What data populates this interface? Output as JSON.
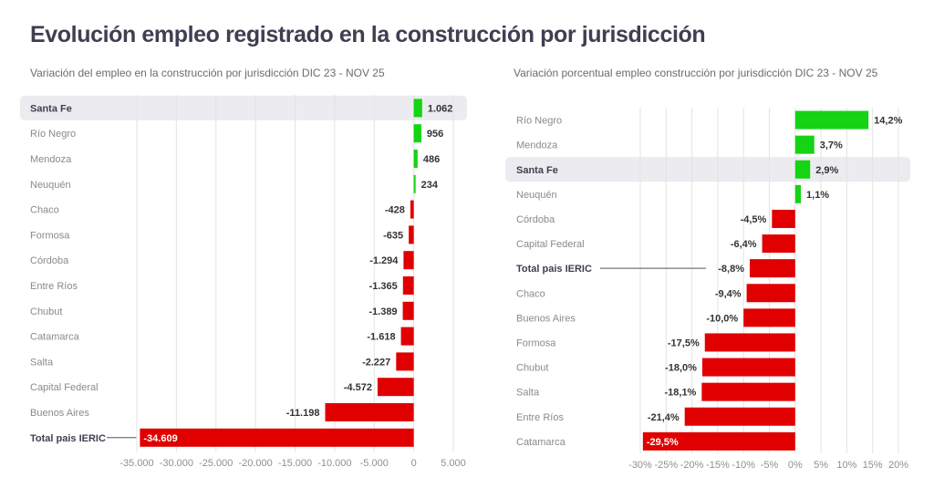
{
  "page": {
    "title": "Evolución empleo registrado en la construcción por jurisdicción"
  },
  "colors": {
    "positive": "#14d414",
    "negative": "#e00000",
    "highlight_band": "#ececf0",
    "title": "#3f3f52"
  },
  "chart_data": [
    {
      "type": "bar",
      "orientation": "horizontal",
      "title": "Variación del empleo en la construcción por jurisdicción DIC 23 - NOV 25",
      "xlabel": "",
      "ylabel": "",
      "xlim": [
        -35000,
        5000
      ],
      "grid": true,
      "highlight": "Santa Fe",
      "total_label": "Total pais IERIC",
      "categories": [
        "Santa Fe",
        "Río Negro",
        "Mendoza",
        "Neuquén",
        "Chaco",
        "Formosa",
        "Córdoba",
        "Entre Ríos",
        "Chubut",
        "Catamarca",
        "Salta",
        "Capital Federal",
        "Buenos Aires",
        "Total pais IERIC"
      ],
      "values": [
        1062,
        956,
        486,
        234,
        -428,
        -635,
        -1294,
        -1365,
        -1389,
        -1618,
        -2227,
        -4572,
        -11198,
        -34609
      ],
      "value_labels": [
        "1.062",
        "956",
        "486",
        "234",
        "-428",
        "-635",
        "-1.294",
        "-1.365",
        "-1.389",
        "-1.618",
        "-2.227",
        "-4.572",
        "-11.198",
        "-34.609"
      ],
      "ticks": [
        -35000,
        -30000,
        -25000,
        -20000,
        -15000,
        -10000,
        -5000,
        0,
        5000
      ],
      "tick_labels": [
        "-35.000",
        "-30.000",
        "-25.000",
        "-20.000",
        "-15.000",
        "-10.000",
        "-5.000",
        "0",
        "5.000"
      ]
    },
    {
      "type": "bar",
      "orientation": "horizontal",
      "title": "Variación  porcentual empleo construcción por jurisdicción DIC 23 - NOV 25",
      "xlabel": "",
      "ylabel": "",
      "xlim": [
        -30,
        20
      ],
      "unit": "%",
      "grid": true,
      "highlight": "Santa Fe",
      "total_label": "Total pais IERIC",
      "categories": [
        "Río Negro",
        "Mendoza",
        "Santa Fe",
        "Neuquén",
        "Córdoba",
        "Capital Federal",
        "Total pais IERIC",
        "Chaco",
        "Buenos Aires",
        "Formosa",
        "Chubut",
        "Salta",
        "Entre Ríos",
        "Catamarca"
      ],
      "values": [
        14.2,
        3.7,
        2.9,
        1.1,
        -4.5,
        -6.4,
        -8.8,
        -9.4,
        -10.0,
        -17.5,
        -18.0,
        -18.1,
        -21.4,
        -29.5
      ],
      "value_labels": [
        "14,2%",
        "3,7%",
        "2,9%",
        "1,1%",
        "-4,5%",
        "-6,4%",
        "-8,8%",
        "-9,4%",
        "-10,0%",
        "-17,5%",
        "-18,0%",
        "-18,1%",
        "-21,4%",
        "-29,5%"
      ],
      "ticks": [
        -30,
        -25,
        -20,
        -15,
        -10,
        -5,
        0,
        5,
        10,
        15,
        20
      ],
      "tick_labels": [
        "-30%",
        "-25%",
        "-20%",
        "-15%",
        "-10%",
        "-5%",
        "0%",
        "5%",
        "10%",
        "15%",
        "20%"
      ]
    }
  ]
}
